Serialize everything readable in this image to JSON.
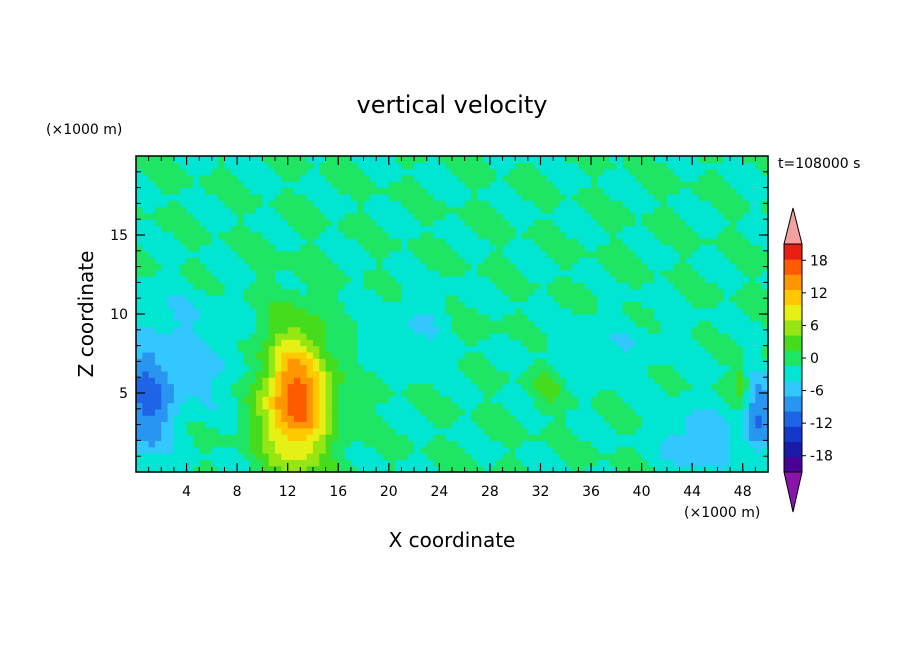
{
  "chart_data": {
    "type": "heatmap",
    "title": "vertical velocity",
    "xlabel": "X coordinate",
    "ylabel": "Z coordinate",
    "x_unit": "(×1000 m)",
    "y_unit": "(×1000 m)",
    "time_label": "t=108000 s",
    "xlim": [
      0,
      50
    ],
    "ylim": [
      0,
      20
    ],
    "x_ticks": [
      4,
      8,
      12,
      16,
      20,
      24,
      28,
      32,
      36,
      40,
      44,
      48
    ],
    "y_ticks": [
      5,
      10,
      15
    ],
    "colorbar": {
      "ticks": [
        18,
        12,
        6,
        0,
        -6,
        -12,
        -18
      ],
      "levels": [
        -21,
        -18,
        -15,
        -12,
        -9,
        -6,
        -3,
        0,
        3,
        6,
        9,
        12,
        15,
        18,
        21
      ],
      "colors": [
        "#4b0096",
        "#1a1aa6",
        "#1438c8",
        "#1e64e6",
        "#2896f0",
        "#32c8ff",
        "#00e6d2",
        "#1ee664",
        "#46dc1e",
        "#96e614",
        "#e6f014",
        "#ffc800",
        "#ff9600",
        "#ff5a00",
        "#e61e14"
      ],
      "over_color": "#f4a0a0",
      "under_color": "#8a14aa",
      "extend": "both"
    },
    "background_value": 0,
    "features": [
      {
        "name": "updraft core",
        "x": 12.6,
        "z": 4.6,
        "sx": 1.9,
        "sz": 3.0,
        "value": 20
      },
      {
        "name": "weak updraft",
        "x": 47.8,
        "z": 5.6,
        "sx": 0.4,
        "sz": 0.9,
        "value": 6
      },
      {
        "name": "updraft patch",
        "x": 32.5,
        "z": 5.5,
        "sx": 0.8,
        "sz": 0.9,
        "value": 4
      },
      {
        "name": "updraft patch",
        "x": 26.0,
        "z": 9.0,
        "sx": 1.6,
        "sz": 0.6,
        "value": 3
      },
      {
        "name": "downdraft left edge",
        "x": 0.8,
        "z": 4.0,
        "sx": 1.4,
        "sz": 2.4,
        "value": -9
      },
      {
        "name": "downdraft band",
        "x": 4.0,
        "z": 6.5,
        "sx": 3.5,
        "sz": 2.0,
        "value": -4
      },
      {
        "name": "downdraft diagonal",
        "x": 22.0,
        "z": 9.0,
        "sx": 3.0,
        "sz": 1.5,
        "value": -3
      },
      {
        "name": "downdraft right",
        "x": 44.5,
        "z": 2.0,
        "sx": 2.0,
        "sz": 1.4,
        "value": -6
      },
      {
        "name": "downdraft right edge",
        "x": 49.2,
        "z": 3.5,
        "sx": 0.8,
        "sz": 1.8,
        "value": -9
      },
      {
        "name": "weak downdraft",
        "x": 3.0,
        "z": 10.0,
        "sx": 3.0,
        "sz": 1.4,
        "value": -2
      },
      {
        "name": "weak downdraft",
        "x": 38.0,
        "z": 8.0,
        "sx": 4.0,
        "sz": 1.4,
        "value": -2
      }
    ]
  }
}
